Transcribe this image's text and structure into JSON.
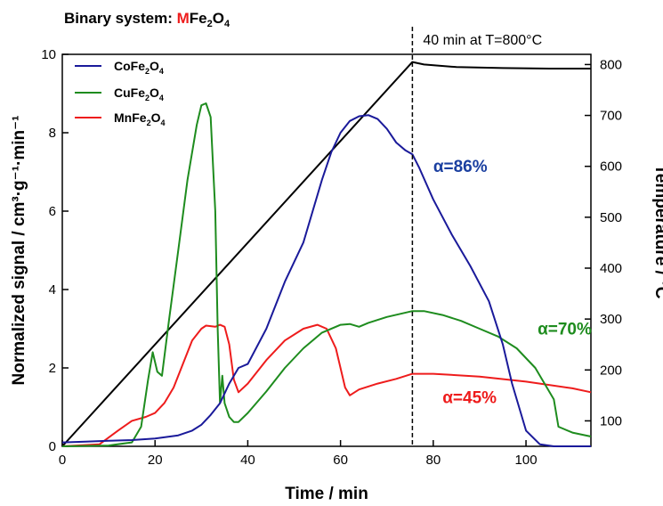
{
  "chart_data": {
    "type": "line",
    "title_prefix": "Binary system: ",
    "title_m": "M",
    "title_fe": "Fe",
    "title_sub2": "2",
    "title_o": "O",
    "title_sub4": "4",
    "xlabel": "Time / min",
    "ylabel": "Normalized signal / cm³·g⁻¹·min⁻¹",
    "y2label": "Temperature / °C",
    "xlim": [
      0,
      114
    ],
    "ylim": [
      0,
      10
    ],
    "y2lim": [
      50,
      820
    ],
    "xticks": [
      "0",
      "20",
      "40",
      "60",
      "80",
      "100"
    ],
    "yticks": [
      "0",
      "2",
      "4",
      "6",
      "8",
      "10"
    ],
    "y2ticks": [
      "100",
      "200",
      "300",
      "400",
      "500",
      "600",
      "700",
      "800"
    ],
    "legend_position": "top-left",
    "vline": {
      "x": 75.5,
      "label": "40 min at T=800°C"
    },
    "series": [
      {
        "name": "CoFe₂O₄",
        "name_base": "CoFe",
        "name_sub2": "2",
        "name_o": "O",
        "name_sub4": "4",
        "color": "#1a1a9a",
        "axis": "left",
        "x": [
          0,
          5,
          10,
          15,
          20,
          25,
          28,
          30,
          32,
          34,
          36,
          38,
          40,
          44,
          48,
          52,
          56,
          58,
          60,
          62,
          64,
          66,
          68,
          70,
          72,
          74,
          75.5,
          77,
          80,
          84,
          88,
          92,
          95,
          97,
          100,
          103,
          106,
          110,
          114
        ],
        "y": [
          0.1,
          0.12,
          0.14,
          0.16,
          0.2,
          0.28,
          0.4,
          0.55,
          0.8,
          1.1,
          1.6,
          2.0,
          2.1,
          3.0,
          4.2,
          5.2,
          6.8,
          7.5,
          8.0,
          8.3,
          8.42,
          8.45,
          8.35,
          8.1,
          7.75,
          7.55,
          7.45,
          7.1,
          6.3,
          5.4,
          4.6,
          3.7,
          2.6,
          1.6,
          0.4,
          0.05,
          0.0,
          0.0,
          0.0
        ]
      },
      {
        "name": "CuFe₂O₄",
        "name_base": "CuFe",
        "name_sub2": "2",
        "name_o": "O",
        "name_sub4": "4",
        "color": "#1e8c1e",
        "axis": "left",
        "x": [
          0,
          10,
          15,
          17,
          18.5,
          19.5,
          20.5,
          21.5,
          23,
          25,
          27,
          29,
          30,
          31,
          32,
          33,
          33.5,
          34,
          34.5,
          35,
          36,
          37,
          38,
          40,
          44,
          48,
          52,
          56,
          60,
          62,
          64,
          66,
          70,
          75.5,
          78,
          82,
          86,
          90,
          94,
          98,
          102,
          104,
          106,
          107,
          110,
          114
        ],
        "y": [
          0.0,
          0.02,
          0.1,
          0.5,
          1.7,
          2.4,
          1.9,
          1.8,
          3.2,
          5.0,
          6.8,
          8.2,
          8.7,
          8.75,
          8.4,
          6.0,
          3.0,
          1.1,
          1.8,
          1.1,
          0.75,
          0.62,
          0.62,
          0.85,
          1.4,
          2.0,
          2.5,
          2.9,
          3.1,
          3.12,
          3.05,
          3.15,
          3.3,
          3.45,
          3.45,
          3.35,
          3.2,
          3.0,
          2.8,
          2.5,
          2.0,
          1.6,
          1.2,
          0.5,
          0.35,
          0.25
        ]
      },
      {
        "name": "MnFe₂O₄",
        "name_base": "MnFe",
        "name_sub2": "2",
        "name_o": "O",
        "name_sub4": "4",
        "color": "#ee1c1c",
        "axis": "left",
        "x": [
          0,
          8,
          12,
          15,
          18,
          20,
          22,
          24,
          26,
          28,
          30,
          31,
          33,
          34,
          35,
          36,
          37,
          38,
          40,
          44,
          48,
          52,
          55,
          57,
          59,
          61,
          62,
          64,
          68,
          72,
          75.5,
          80,
          90,
          100,
          110,
          114
        ],
        "y": [
          0.0,
          0.05,
          0.4,
          0.65,
          0.75,
          0.85,
          1.1,
          1.5,
          2.1,
          2.7,
          3.0,
          3.08,
          3.05,
          3.1,
          3.05,
          2.6,
          1.7,
          1.38,
          1.6,
          2.2,
          2.7,
          3.0,
          3.1,
          3.0,
          2.5,
          1.5,
          1.3,
          1.45,
          1.6,
          1.72,
          1.85,
          1.85,
          1.78,
          1.65,
          1.48,
          1.38
        ]
      },
      {
        "name": "Temperature",
        "color": "#000000",
        "axis": "right",
        "x": [
          0,
          75.5,
          78,
          85,
          95,
          105,
          114
        ],
        "y": [
          50,
          805,
          800,
          795,
          793,
          792,
          792
        ]
      }
    ],
    "annotations": [
      {
        "text": "α=86%",
        "x": 80,
        "y": 7.0,
        "color": "#1a3fa0"
      },
      {
        "text": "α=70%",
        "x": 102.5,
        "y": 2.85,
        "color": "#1e8c1e"
      },
      {
        "text": "α=45%",
        "x": 82,
        "y": 1.1,
        "color": "#ee1c1c"
      }
    ]
  }
}
